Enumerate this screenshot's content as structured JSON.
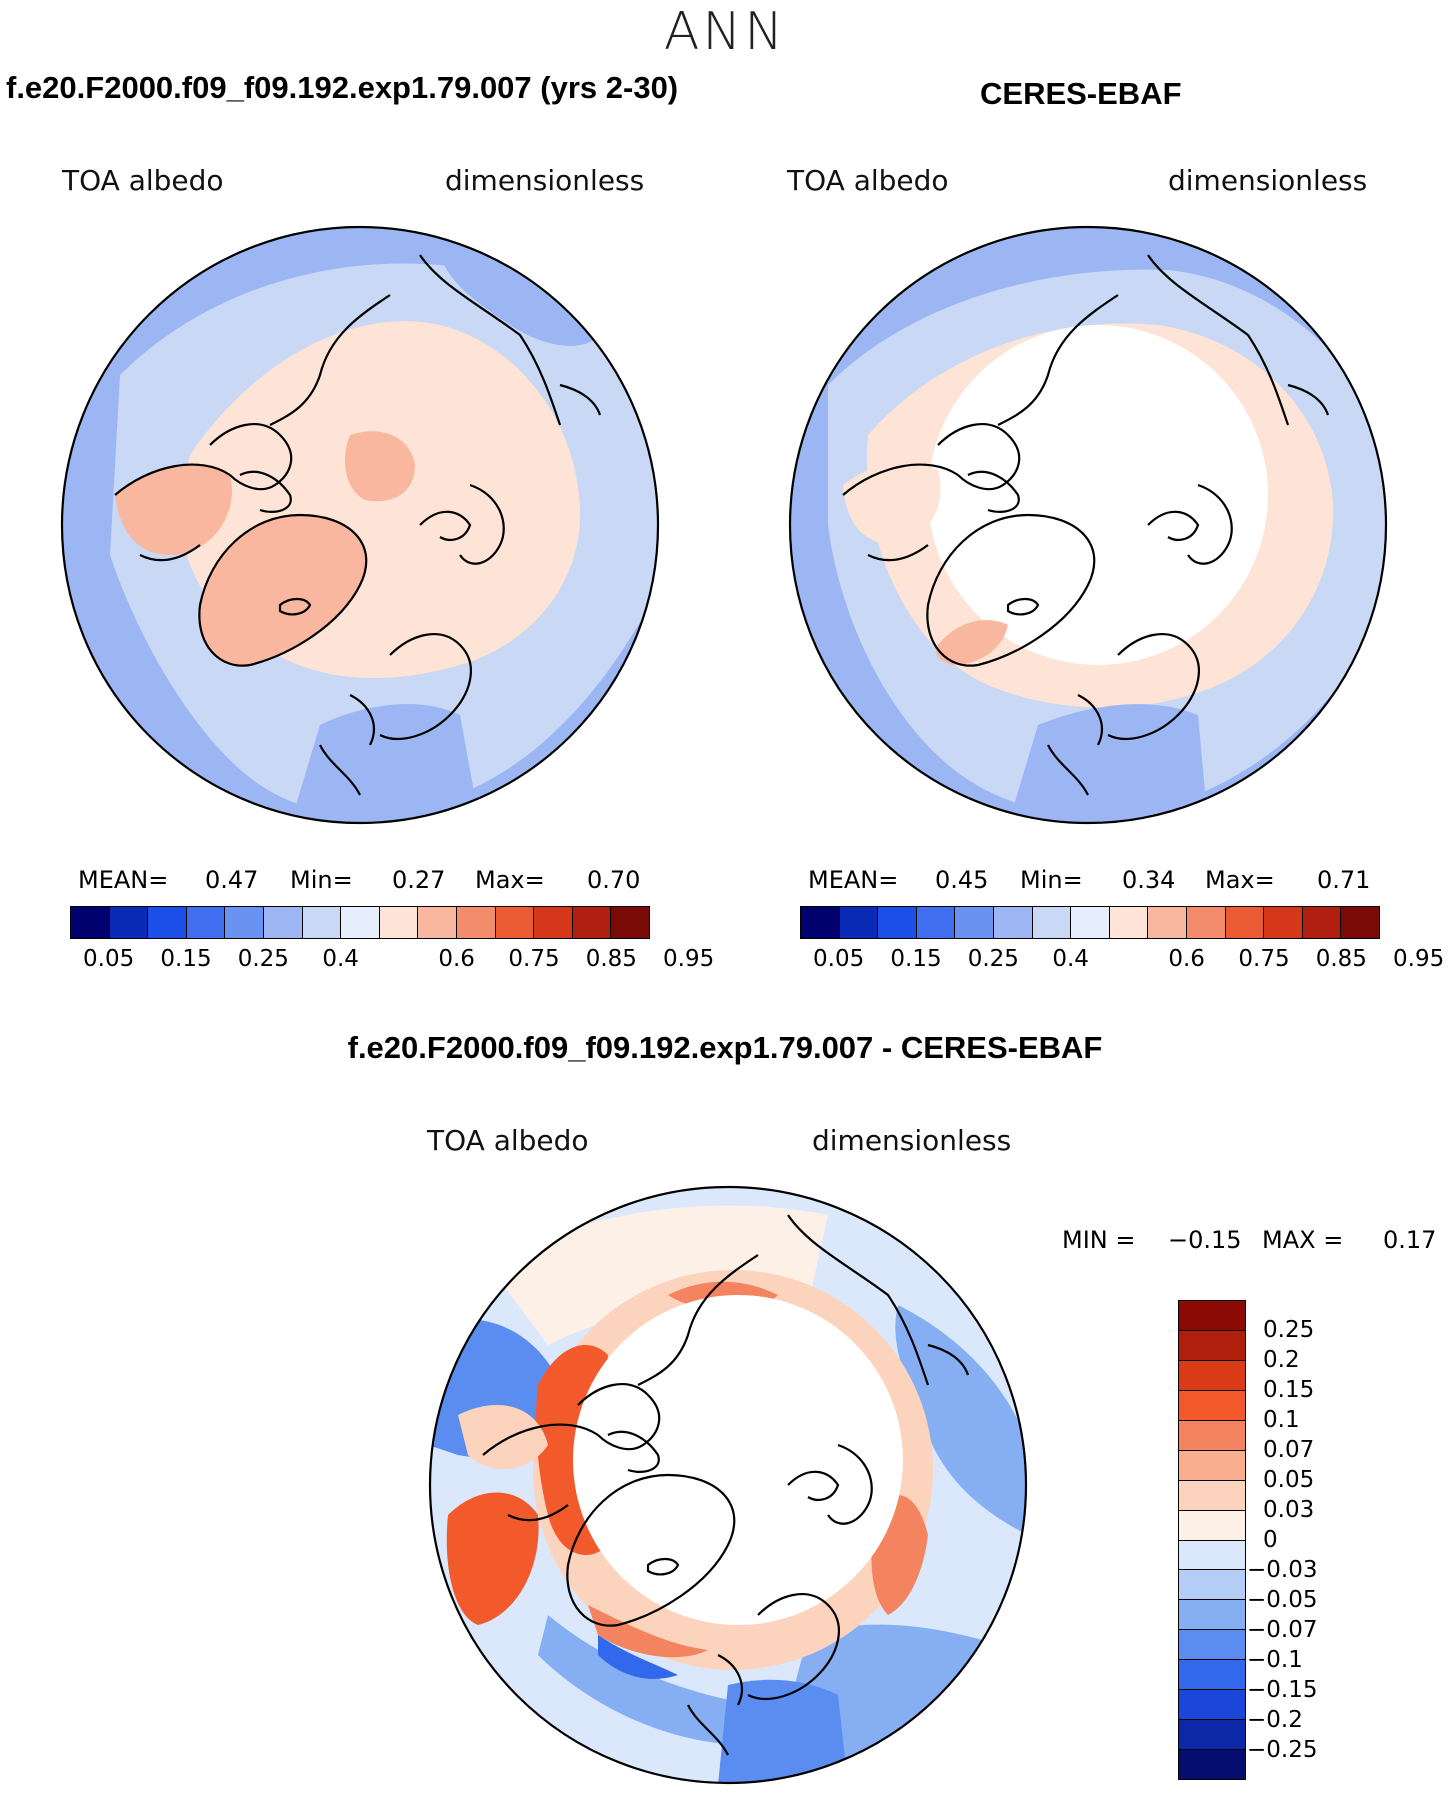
{
  "season": "ANN",
  "panels": [
    {
      "title": "f.e20.F2000.f09_f09.192.exp1.79.007 (yrs 2-30)",
      "var_label": "TOA albedo",
      "units_label": "dimensionless",
      "stats": {
        "mean_label": "MEAN=",
        "mean": "0.47",
        "min_label": "Min=",
        "min": "0.27",
        "max_label": "Max=",
        "max": "0.70"
      }
    },
    {
      "title": "CERES-EBAF",
      "var_label": "TOA albedo",
      "units_label": "dimensionless",
      "stats": {
        "mean_label": "MEAN=",
        "mean": "0.45",
        "min_label": "Min=",
        "min": "0.34",
        "max_label": "Max=",
        "max": "0.71"
      }
    }
  ],
  "diff": {
    "title": "f.e20.F2000.f09_f09.192.exp1.79.007 - CERES-EBAF",
    "var_label": "TOA albedo",
    "units_label": "dimensionless",
    "min_label": "MIN =",
    "min": "−0.15",
    "max_label": "MAX =",
    "max": "0.17"
  },
  "colorbar_main": {
    "colors": [
      "#00006e",
      "#0a2bb5",
      "#1c4fe8",
      "#3f6fee",
      "#6a92f0",
      "#9bb6f2",
      "#c8d8f5",
      "#e6eefb",
      "#fde4d6",
      "#f8b79e",
      "#f28c6a",
      "#ea5a33",
      "#d6361a",
      "#b02010",
      "#7a0a05"
    ],
    "labels": [
      "0.05",
      "0.15",
      "0.25",
      "0.4",
      "0.6",
      "0.75",
      "0.85",
      "0.95"
    ]
  },
  "colorbar_diff": {
    "colors_top_to_bottom": [
      "#8b0a05",
      "#b01e0c",
      "#d93a17",
      "#f25a2b",
      "#f48460",
      "#f8ae8f",
      "#fcd3bd",
      "#fdf0e6",
      "#dbe8fb",
      "#b3cdf6",
      "#86aef2",
      "#5b8df0",
      "#3269ec",
      "#1a46d9",
      "#0c28a8",
      "#050d6e"
    ],
    "labels": [
      "0.25",
      "0.2",
      "0.15",
      "0.1",
      "0.07",
      "0.05",
      "0.03",
      "0",
      "−0.03",
      "−0.05",
      "−0.07",
      "−0.1",
      "−0.15",
      "−0.2",
      "−0.25"
    ]
  },
  "chart_data": [
    {
      "type": "heatmap",
      "projection": "north-polar-stereographic",
      "title": "f.e20.F2000.f09_f09.192.exp1.79.007 (yrs 2-30)",
      "variable": "TOA albedo",
      "units": "dimensionless",
      "mean": 0.47,
      "min": 0.27,
      "max": 0.7,
      "levels": [
        0.05,
        0.1,
        0.15,
        0.2,
        0.25,
        0.3,
        0.4,
        0.5,
        0.6,
        0.65,
        0.75,
        0.8,
        0.85,
        0.9,
        0.95
      ]
    },
    {
      "type": "heatmap",
      "projection": "north-polar-stereographic",
      "title": "CERES-EBAF",
      "variable": "TOA albedo",
      "units": "dimensionless",
      "mean": 0.45,
      "min": 0.34,
      "max": 0.71,
      "levels": [
        0.05,
        0.1,
        0.15,
        0.2,
        0.25,
        0.3,
        0.4,
        0.5,
        0.6,
        0.65,
        0.75,
        0.8,
        0.85,
        0.9,
        0.95
      ]
    },
    {
      "type": "heatmap",
      "projection": "north-polar-stereographic",
      "title": "f.e20.F2000.f09_f09.192.exp1.79.007 - CERES-EBAF",
      "variable": "TOA albedo",
      "units": "dimensionless",
      "min": -0.15,
      "max": 0.17,
      "levels": [
        -0.25,
        -0.2,
        -0.15,
        -0.1,
        -0.07,
        -0.05,
        -0.03,
        0,
        0.03,
        0.05,
        0.07,
        0.1,
        0.15,
        0.2,
        0.25
      ]
    }
  ]
}
